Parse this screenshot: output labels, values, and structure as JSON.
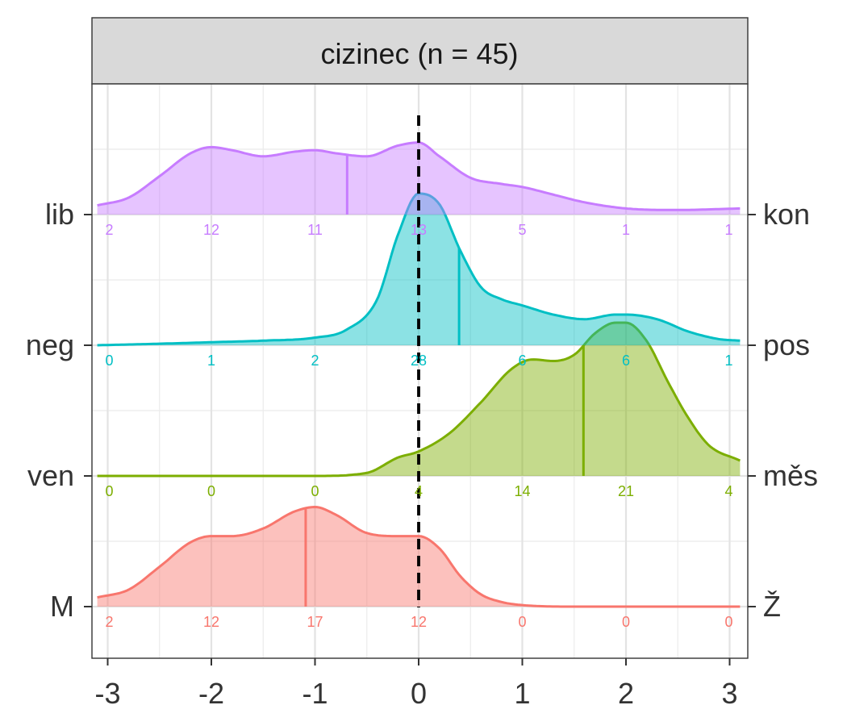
{
  "chart_data": {
    "type": "area",
    "title": "cizinec (n = 45)",
    "xlabel": "",
    "ylabel": "",
    "xlim": [
      -3.1,
      3.1
    ],
    "x_ticks": [
      -3,
      -2,
      -1,
      0,
      1,
      2,
      3
    ],
    "x_tick_labels": [
      "-3",
      "-2",
      "-1",
      "0",
      "1",
      "2",
      "3"
    ],
    "reference_line": 0,
    "grid": true,
    "count_positions": [
      -3,
      -2,
      -1,
      0,
      1,
      2,
      3
    ],
    "series": [
      {
        "left_label": "M",
        "right_label": "Ž",
        "color": "#F8766D",
        "counts": [
          2,
          12,
          17,
          12,
          0,
          0,
          0
        ],
        "mean": -1.09,
        "density": {
          "x": [
            -3.1,
            -2.8,
            -2.5,
            -2.2,
            -2.0,
            -1.8,
            -1.5,
            -1.2,
            -1.0,
            -0.8,
            -0.5,
            -0.2,
            0.0,
            0.2,
            0.4,
            0.6,
            0.8,
            1.0,
            1.5,
            2.0,
            2.5,
            3.1
          ],
          "y": [
            0.06,
            0.11,
            0.26,
            0.42,
            0.46,
            0.46,
            0.51,
            0.62,
            0.65,
            0.6,
            0.48,
            0.46,
            0.46,
            0.38,
            0.2,
            0.08,
            0.03,
            0.01,
            0.0,
            0.0,
            0.0,
            0.0
          ]
        }
      },
      {
        "left_label": "ven",
        "right_label": "měs",
        "color": "#7CAE00",
        "counts": [
          0,
          0,
          0,
          4,
          14,
          21,
          4
        ],
        "mean": 1.59,
        "density": {
          "x": [
            -3.1,
            -2.0,
            -1.0,
            -0.5,
            -0.2,
            0.0,
            0.3,
            0.6,
            0.9,
            1.1,
            1.3,
            1.5,
            1.7,
            1.9,
            2.0,
            2.2,
            2.4,
            2.6,
            2.8,
            3.1
          ],
          "y": [
            0.0,
            0.0,
            0.0,
            0.02,
            0.12,
            0.16,
            0.28,
            0.48,
            0.7,
            0.76,
            0.75,
            0.79,
            0.93,
            1.0,
            1.0,
            0.88,
            0.62,
            0.38,
            0.2,
            0.1
          ]
        }
      },
      {
        "left_label": "neg",
        "right_label": "pos",
        "color": "#00BFC4",
        "counts": [
          0,
          1,
          2,
          28,
          6,
          6,
          1
        ],
        "mean": 0.39,
        "density": {
          "x": [
            -3.1,
            -2.5,
            -2.0,
            -1.5,
            -1.0,
            -0.7,
            -0.4,
            -0.2,
            0.0,
            0.2,
            0.4,
            0.6,
            0.8,
            1.0,
            1.3,
            1.6,
            1.9,
            2.0,
            2.3,
            2.6,
            2.9,
            3.1
          ],
          "y": [
            0.0,
            0.01,
            0.02,
            0.03,
            0.05,
            0.1,
            0.3,
            0.72,
            0.99,
            0.92,
            0.62,
            0.38,
            0.3,
            0.26,
            0.2,
            0.17,
            0.2,
            0.2,
            0.17,
            0.09,
            0.04,
            0.03
          ]
        }
      },
      {
        "left_label": "lib",
        "right_label": "kon",
        "color": "#C77CFF",
        "counts": [
          2,
          12,
          11,
          13,
          5,
          1,
          1
        ],
        "mean": -0.69,
        "density": {
          "x": [
            -3.1,
            -2.8,
            -2.5,
            -2.2,
            -2.0,
            -1.8,
            -1.5,
            -1.2,
            -1.0,
            -0.8,
            -0.5,
            -0.2,
            0.0,
            0.2,
            0.5,
            0.8,
            1.0,
            1.3,
            1.6,
            2.0,
            2.5,
            3.1
          ],
          "y": [
            0.06,
            0.11,
            0.25,
            0.4,
            0.44,
            0.42,
            0.38,
            0.41,
            0.42,
            0.4,
            0.38,
            0.45,
            0.47,
            0.38,
            0.24,
            0.2,
            0.18,
            0.13,
            0.08,
            0.04,
            0.03,
            0.04
          ]
        }
      }
    ]
  }
}
